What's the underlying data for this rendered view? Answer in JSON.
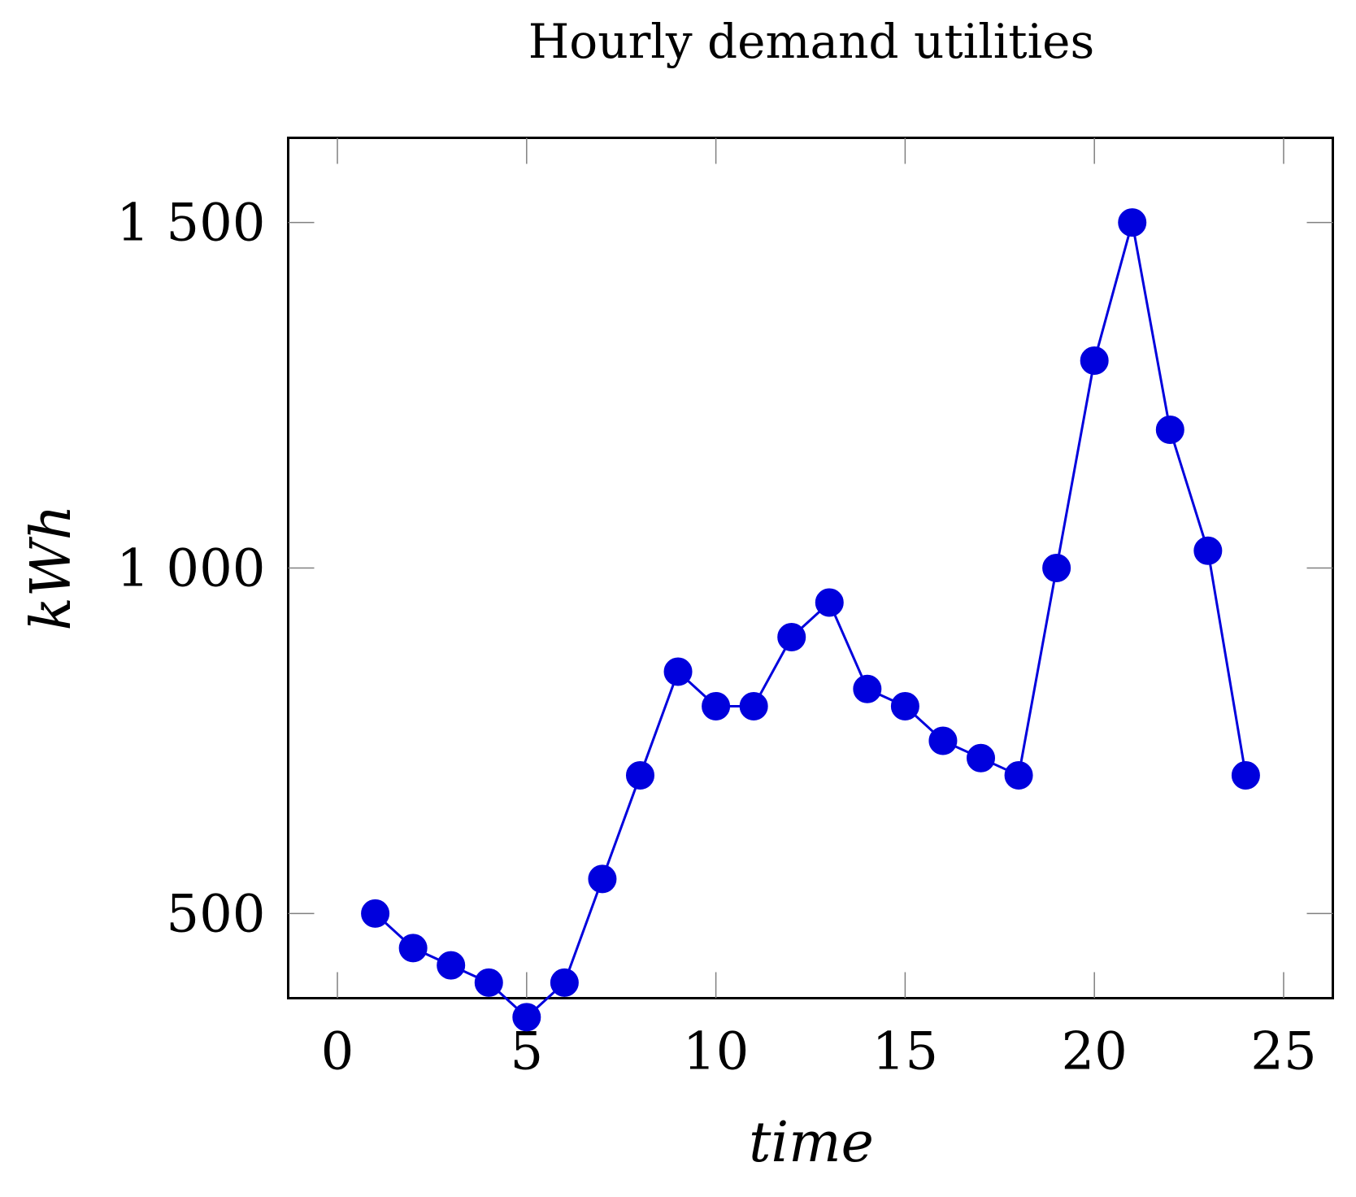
{
  "chart_data": {
    "type": "line",
    "title": "Hourly demand utilities",
    "xlabel": "time",
    "ylabel": "kWh",
    "xlim": [
      -1.3,
      26.3
    ],
    "ylim": [
      377.5,
      1622.5
    ],
    "x_ticks": [
      0,
      5,
      10,
      15,
      20,
      25
    ],
    "x_tick_labels": [
      "0",
      "5",
      "10",
      "15",
      "20",
      "25"
    ],
    "y_ticks": [
      500,
      1000,
      1500
    ],
    "y_tick_labels": [
      "500",
      "1 000",
      "1 500"
    ],
    "grid": false,
    "legend": "none",
    "series": [
      {
        "color": "#0000dd",
        "marker": "circle",
        "x": [
          1,
          2,
          3,
          4,
          5,
          6,
          7,
          8,
          9,
          10,
          11,
          12,
          13,
          14,
          15,
          16,
          17,
          18,
          19,
          20,
          21,
          22,
          23,
          24
        ],
        "y": [
          500,
          450,
          425,
          400,
          350,
          400,
          550,
          700,
          850,
          800,
          800,
          900,
          950,
          825,
          800,
          750,
          725,
          700,
          1000,
          1300,
          1500,
          1200,
          1025,
          700
        ]
      }
    ]
  }
}
